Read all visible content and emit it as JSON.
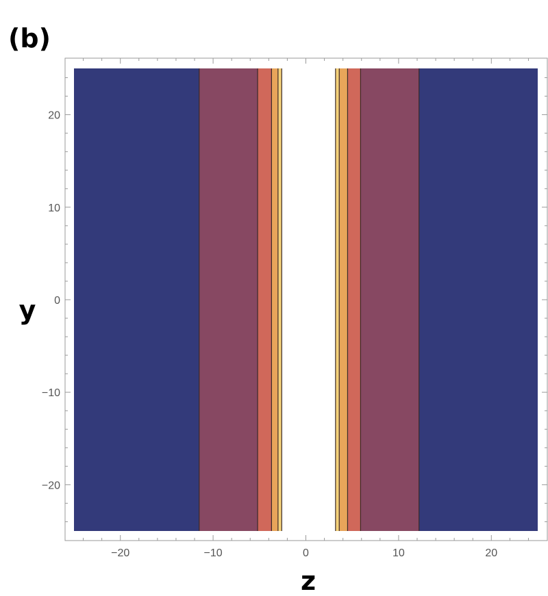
{
  "panel_label": "(b)",
  "chart_data": {
    "type": "heatmap",
    "subtype": "contour",
    "title": "",
    "xlabel": "z",
    "ylabel": "y",
    "xlim": [
      -25,
      25
    ],
    "ylim": [
      -25,
      25
    ],
    "x_major_ticks": [
      -20,
      -10,
      0,
      10,
      20
    ],
    "y_major_ticks": [
      -20,
      -10,
      0,
      10,
      20
    ],
    "grid": false,
    "legend": "none",
    "contour_bands": [
      {
        "z_from": -25,
        "z_to": -11.5,
        "color": "#333a7a"
      },
      {
        "z_from": -11.5,
        "z_to": -5.2,
        "color": "#874862"
      },
      {
        "z_from": -5.2,
        "z_to": -3.7,
        "color": "#d0685a"
      },
      {
        "z_from": -3.7,
        "z_to": -3.0,
        "color": "#e8a55a"
      },
      {
        "z_from": -3.0,
        "z_to": -2.6,
        "color": "#f5d27a"
      },
      {
        "z_from": -2.6,
        "z_to": 3.2,
        "color": "#ffffff"
      },
      {
        "z_from": 3.2,
        "z_to": 3.6,
        "color": "#f5d27a"
      },
      {
        "z_from": 3.6,
        "z_to": 4.5,
        "color": "#e8a55a"
      },
      {
        "z_from": 4.5,
        "z_to": 5.9,
        "color": "#d0685a"
      },
      {
        "z_from": 5.9,
        "z_to": 12.2,
        "color": "#874862"
      },
      {
        "z_from": 12.2,
        "z_to": 25,
        "color": "#333a7a"
      }
    ],
    "contour_lines_z": [
      -11.5,
      -5.2,
      -3.7,
      -3.0,
      -2.6,
      3.2,
      3.6,
      4.5,
      5.9,
      12.2
    ],
    "contour_line_color": "#3a2a2a"
  }
}
